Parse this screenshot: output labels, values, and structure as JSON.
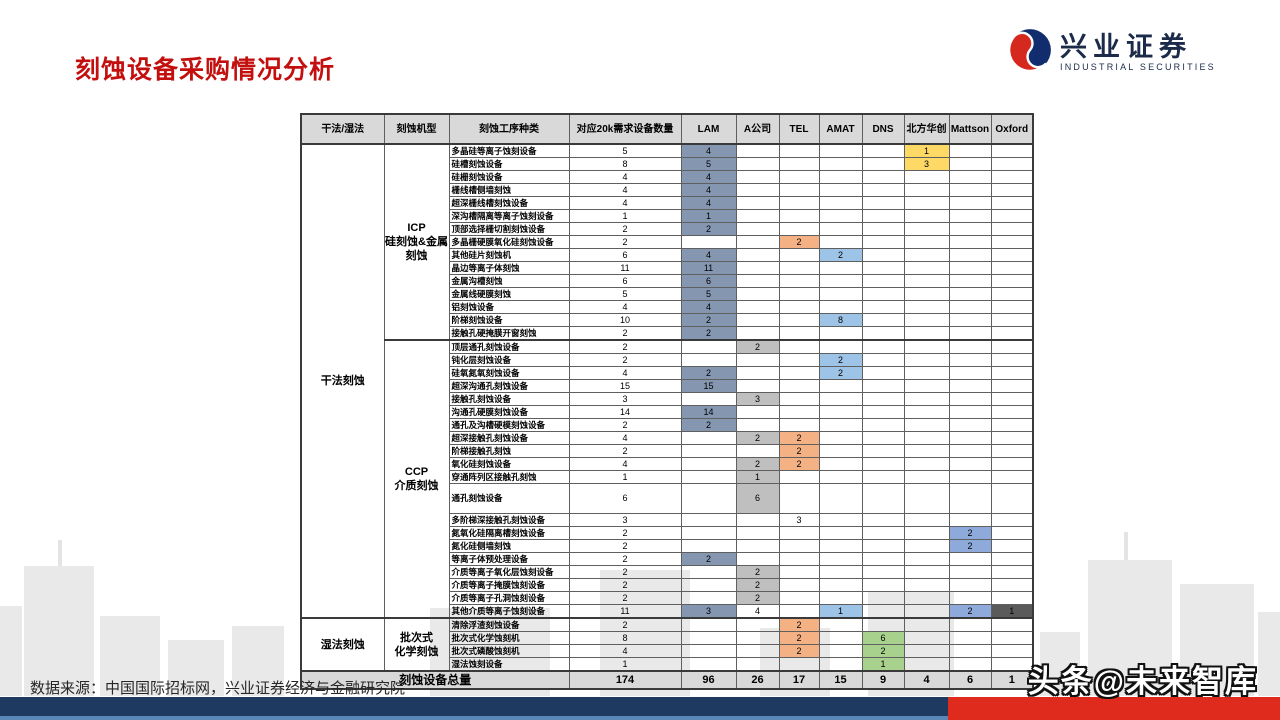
{
  "title": "刻蚀设备采购情况分析",
  "logo": {
    "cn": "兴业证券",
    "en": "INDUSTRIAL SECURITIES"
  },
  "source": "数据来源：中国国际招标网，兴业证券经济与金融研究院",
  "watermark": "头条@未来智库",
  "colors": {
    "steel": "#8496b0",
    "gray": "#bfbfbf",
    "orange": "#f4b183",
    "lightblue": "#9dc3e6",
    "green": "#a9d18e",
    "yellow": "#ffd966",
    "blue": "#8eaadb",
    "dark": "#5a5a5a",
    "none": "",
    "title_red": "#c40f0f",
    "bar_navy": "#1e3a60",
    "bar_red": "#df2b1d",
    "logo_navy": "#1c2b4a"
  },
  "table": {
    "headers": [
      "干法/湿法",
      "刻蚀机型",
      "刻蚀工序种类",
      "对应20k需求设备数量",
      "LAM",
      "A公司",
      "TEL",
      "AMAT",
      "DNS",
      "北方华创",
      "Mattson",
      "Oxford"
    ],
    "vendor_keys": [
      "LAM",
      "A",
      "TEL",
      "AMAT",
      "DNS",
      "BFHC",
      "Mattson",
      "Oxford"
    ],
    "groups": [
      {
        "method": "干法刻蚀",
        "machines": [
          {
            "type": "ICP\n硅刻蚀&金属刻蚀",
            "rows": [
              {
                "name": "多晶硅等离子蚀刻设备",
                "qty": 5,
                "cells": {
                  "LAM": [
                    4,
                    "steel"
                  ],
                  "BFHC": [
                    1,
                    "yellow"
                  ]
                }
              },
              {
                "name": "硅槽刻蚀设备",
                "qty": 8,
                "cells": {
                  "LAM": [
                    5,
                    "steel"
                  ],
                  "BFHC": [
                    3,
                    "yellow"
                  ]
                }
              },
              {
                "name": "硅栅刻蚀设备",
                "qty": 4,
                "cells": {
                  "LAM": [
                    4,
                    "steel"
                  ]
                }
              },
              {
                "name": "栅线槽侧墙刻蚀",
                "qty": 4,
                "cells": {
                  "LAM": [
                    4,
                    "steel"
                  ]
                }
              },
              {
                "name": "超深栅线槽刻蚀设备",
                "qty": 4,
                "cells": {
                  "LAM": [
                    4,
                    "steel"
                  ]
                }
              },
              {
                "name": "深沟槽隔离等离子蚀刻设备",
                "qty": 1,
                "cells": {
                  "LAM": [
                    1,
                    "steel"
                  ]
                }
              },
              {
                "name": "顶部选择栅切割刻蚀设备",
                "qty": 2,
                "cells": {
                  "LAM": [
                    2,
                    "steel"
                  ]
                }
              },
              {
                "name": "多晶栅硬膜氧化硅刻蚀设备",
                "qty": 2,
                "cells": {
                  "TEL": [
                    2,
                    "orange"
                  ]
                }
              },
              {
                "name": "其他硅片刻蚀机",
                "qty": 6,
                "cells": {
                  "LAM": [
                    4,
                    "steel"
                  ],
                  "AMAT": [
                    2,
                    "lightblue"
                  ]
                }
              },
              {
                "name": "晶边等离子体刻蚀",
                "qty": 11,
                "cells": {
                  "LAM": [
                    11,
                    "steel"
                  ]
                }
              },
              {
                "name": "金属沟槽刻蚀",
                "qty": 6,
                "cells": {
                  "LAM": [
                    6,
                    "steel"
                  ]
                }
              },
              {
                "name": "金属线硬膜刻蚀",
                "qty": 5,
                "cells": {
                  "LAM": [
                    5,
                    "steel"
                  ]
                }
              },
              {
                "name": "铝刻蚀设备",
                "qty": 4,
                "cells": {
                  "LAM": [
                    4,
                    "steel"
                  ]
                }
              },
              {
                "name": "阶梯刻蚀设备",
                "qty": 10,
                "cells": {
                  "LAM": [
                    2,
                    "steel"
                  ],
                  "AMAT": [
                    8,
                    "lightblue"
                  ]
                }
              },
              {
                "name": "接触孔硬掩膜开窗刻蚀",
                "qty": 2,
                "cells": {
                  "LAM": [
                    2,
                    "steel"
                  ]
                }
              }
            ]
          },
          {
            "type": "CCP\n介质刻蚀",
            "rows": [
              {
                "name": "顶层通孔刻蚀设备",
                "qty": 2,
                "cells": {
                  "A": [
                    2,
                    "gray"
                  ]
                }
              },
              {
                "name": "钝化层刻蚀设备",
                "qty": 2,
                "cells": {
                  "AMAT": [
                    2,
                    "lightblue"
                  ]
                }
              },
              {
                "name": "硅氧氮氧刻蚀设备",
                "qty": 4,
                "cells": {
                  "LAM": [
                    2,
                    "steel"
                  ],
                  "AMAT": [
                    2,
                    "lightblue"
                  ]
                }
              },
              {
                "name": "超深沟通孔刻蚀设备",
                "qty": 15,
                "cells": {
                  "LAM": [
                    15,
                    "steel"
                  ]
                }
              },
              {
                "name": "接触孔刻蚀设备",
                "qty": 3,
                "cells": {
                  "A": [
                    3,
                    "gray"
                  ]
                }
              },
              {
                "name": "沟通孔硬膜刻蚀设备",
                "qty": 14,
                "cells": {
                  "LAM": [
                    14,
                    "steel"
                  ]
                }
              },
              {
                "name": "通孔及沟槽硬模刻蚀设备",
                "qty": 2,
                "cells": {
                  "LAM": [
                    2,
                    "steel"
                  ]
                }
              },
              {
                "name": "超深接触孔刻蚀设备",
                "qty": 4,
                "cells": {
                  "A": [
                    2,
                    "gray"
                  ],
                  "TEL": [
                    2,
                    "orange"
                  ]
                }
              },
              {
                "name": "阶梯接触孔刻蚀",
                "qty": 2,
                "cells": {
                  "TEL": [
                    2,
                    "orange"
                  ]
                }
              },
              {
                "name": "氧化硅刻蚀设备",
                "qty": 4,
                "cells": {
                  "A": [
                    2,
                    "gray"
                  ],
                  "TEL": [
                    2,
                    "orange"
                  ]
                }
              },
              {
                "name": "穿通阵列区接触孔刻蚀",
                "qty": 1,
                "cells": {
                  "A": [
                    1,
                    "gray"
                  ]
                }
              },
              {
                "name": "通孔刻蚀设备",
                "qty": 6,
                "cells": {
                  "A": [
                    6,
                    "gray"
                  ]
                },
                "tall": true
              },
              {
                "name": "多阶梯深接触孔刻蚀设备",
                "qty": 3,
                "cells": {
                  "TEL": [
                    3,
                    "none"
                  ]
                }
              },
              {
                "name": "氮氧化硅隔离槽刻蚀设备",
                "qty": 2,
                "cells": {
                  "Mattson": [
                    2,
                    "blue"
                  ]
                }
              },
              {
                "name": "氮化硅侧墙刻蚀",
                "qty": 2,
                "cells": {
                  "Mattson": [
                    2,
                    "blue"
                  ]
                }
              },
              {
                "name": "等离子体预处理设备",
                "qty": 2,
                "cells": {
                  "LAM": [
                    2,
                    "steel"
                  ]
                }
              },
              {
                "name": "介质等离子氧化层蚀刻设备",
                "qty": 2,
                "cells": {
                  "A": [
                    2,
                    "gray"
                  ]
                }
              },
              {
                "name": "介质等离子掩膜蚀刻设备",
                "qty": 2,
                "cells": {
                  "A": [
                    2,
                    "gray"
                  ]
                }
              },
              {
                "name": "介质等离子孔洞蚀刻设备",
                "qty": 2,
                "cells": {
                  "A": [
                    2,
                    "gray"
                  ]
                }
              },
              {
                "name": "其他介质等离子蚀刻设备",
                "qty": 11,
                "cells": {
                  "LAM": [
                    3,
                    "steel"
                  ],
                  "A": [
                    4,
                    "none"
                  ],
                  "AMAT": [
                    1,
                    "lightblue"
                  ],
                  "Mattson": [
                    2,
                    "blue"
                  ],
                  "Oxford": [
                    1,
                    "dark"
                  ]
                }
              }
            ]
          }
        ]
      },
      {
        "method": "湿法刻蚀",
        "machines": [
          {
            "type": "批次式\n化学刻蚀",
            "rows": [
              {
                "name": "清除浮渣刻蚀设备",
                "qty": 2,
                "cells": {
                  "TEL": [
                    2,
                    "orange"
                  ]
                }
              },
              {
                "name": "批次式化学蚀刻机",
                "qty": 8,
                "cells": {
                  "TEL": [
                    2,
                    "orange"
                  ],
                  "DNS": [
                    6,
                    "green"
                  ]
                }
              },
              {
                "name": "批次式磷酸蚀刻机",
                "qty": 4,
                "cells": {
                  "TEL": [
                    2,
                    "orange"
                  ],
                  "DNS": [
                    2,
                    "green"
                  ]
                }
              },
              {
                "name": "湿法蚀刻设备",
                "qty": 1,
                "cells": {
                  "DNS": [
                    1,
                    "green"
                  ]
                }
              }
            ]
          }
        ]
      }
    ],
    "total": {
      "label": "刻蚀设备总量",
      "qty": 174,
      "vendors": [
        96,
        26,
        17,
        15,
        9,
        4,
        6,
        1
      ]
    }
  }
}
